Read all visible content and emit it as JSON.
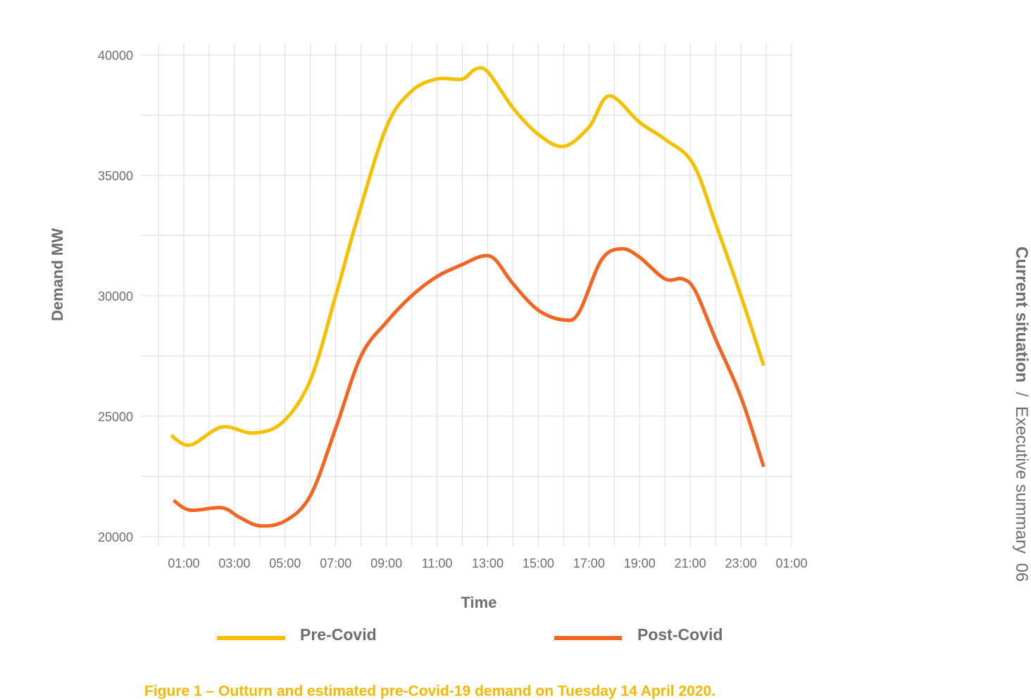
{
  "chart_data": {
    "type": "line",
    "title": "Figure 1 – Outturn and estimated pre-Covid-19 demand on Tuesday 14 April 2020.",
    "xlabel": "Time",
    "ylabel": "Demand MW",
    "xlim_hours": [
      0,
      25
    ],
    "ylim": [
      20000,
      40000
    ],
    "y_ticks": [
      20000,
      25000,
      30000,
      35000,
      40000
    ],
    "x_ticks": [
      {
        "hour": 1,
        "label": "01:00"
      },
      {
        "hour": 3,
        "label": "03:00"
      },
      {
        "hour": 5,
        "label": "05:00"
      },
      {
        "hour": 7,
        "label": "07:00"
      },
      {
        "hour": 9,
        "label": "09:00"
      },
      {
        "hour": 11,
        "label": "11:00"
      },
      {
        "hour": 13,
        "label": "13:00"
      },
      {
        "hour": 15,
        "label": "15:00"
      },
      {
        "hour": 17,
        "label": "17:00"
      },
      {
        "hour": 19,
        "label": "19:00"
      },
      {
        "hour": 21,
        "label": "21:00"
      },
      {
        "hour": 23,
        "label": "23:00"
      },
      {
        "hour": 25,
        "label": "01:00"
      }
    ],
    "grid": true,
    "legend_position": "bottom",
    "series": [
      {
        "name": "Pre-Covid",
        "color": "#f5c000",
        "x": [
          0.5,
          1.25,
          2.5,
          3.75,
          4.9,
          6,
          7,
          7.8,
          9,
          10,
          11,
          12,
          12.5,
          13,
          14,
          15,
          16,
          17,
          17.8,
          19,
          20,
          21.1,
          22,
          23,
          23.9
        ],
        "y": [
          24200,
          23800,
          24550,
          24300,
          24750,
          26500,
          30000,
          33000,
          37000,
          38500,
          39000,
          39000,
          39400,
          39300,
          37800,
          36700,
          36200,
          37000,
          38300,
          37200,
          36500,
          35500,
          33000,
          30000,
          27100
        ]
      },
      {
        "name": "Post-Covid",
        "color": "#f26522",
        "x": [
          0.6,
          1.25,
          2.5,
          3.2,
          4,
          5,
          6,
          7,
          8,
          9,
          10,
          11,
          12,
          12.8,
          13.3,
          14,
          15,
          16,
          16.6,
          17.5,
          18.3,
          19,
          20,
          20.7,
          21.2,
          22,
          23,
          23.9
        ],
        "y": [
          21500,
          21100,
          21200,
          20800,
          20450,
          20650,
          21700,
          24500,
          27500,
          28900,
          30000,
          30800,
          31300,
          31650,
          31500,
          30500,
          29400,
          29000,
          29300,
          31500,
          31950,
          31600,
          30700,
          30700,
          30200,
          28200,
          25800,
          22900
        ]
      }
    ]
  },
  "side_header": {
    "section": "Current situation",
    "separator": "/",
    "subsection": "Executive summary",
    "page": "06"
  }
}
